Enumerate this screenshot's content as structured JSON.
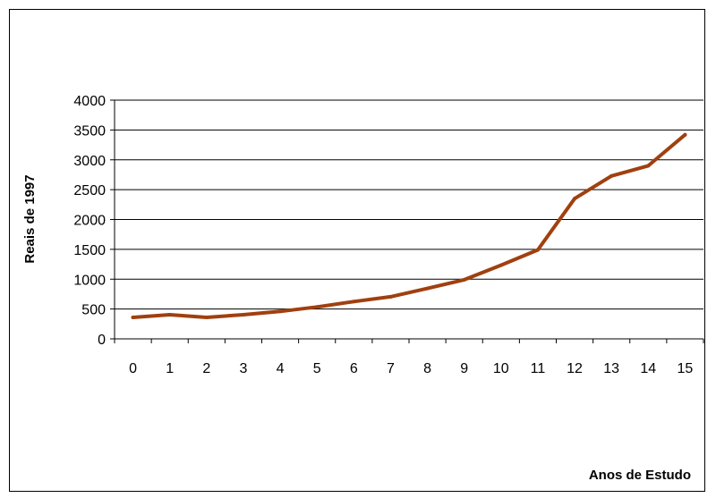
{
  "chart_data": {
    "type": "line",
    "title": "",
    "xlabel": "Anos de Estudo",
    "ylabel": "Reais de 1997",
    "categories": [
      "0",
      "1",
      "2",
      "3",
      "4",
      "5",
      "6",
      "7",
      "8",
      "9",
      "10",
      "11",
      "12",
      "13",
      "14",
      "15"
    ],
    "series": [
      {
        "values": [
          360,
          405,
          360,
          405,
          460,
          535,
          625,
          705,
          845,
          990,
          1235,
          1490,
          2350,
          2730,
          2900,
          3420
        ]
      }
    ],
    "ylim": [
      0,
      4000
    ],
    "yticks": [
      0,
      500,
      1000,
      1500,
      2000,
      2500,
      3000,
      3500,
      4000
    ],
    "grid": "horizontal",
    "legend": "none",
    "line_color": "#a0400f",
    "grid_color": "#000000",
    "background": "#ffffff"
  }
}
